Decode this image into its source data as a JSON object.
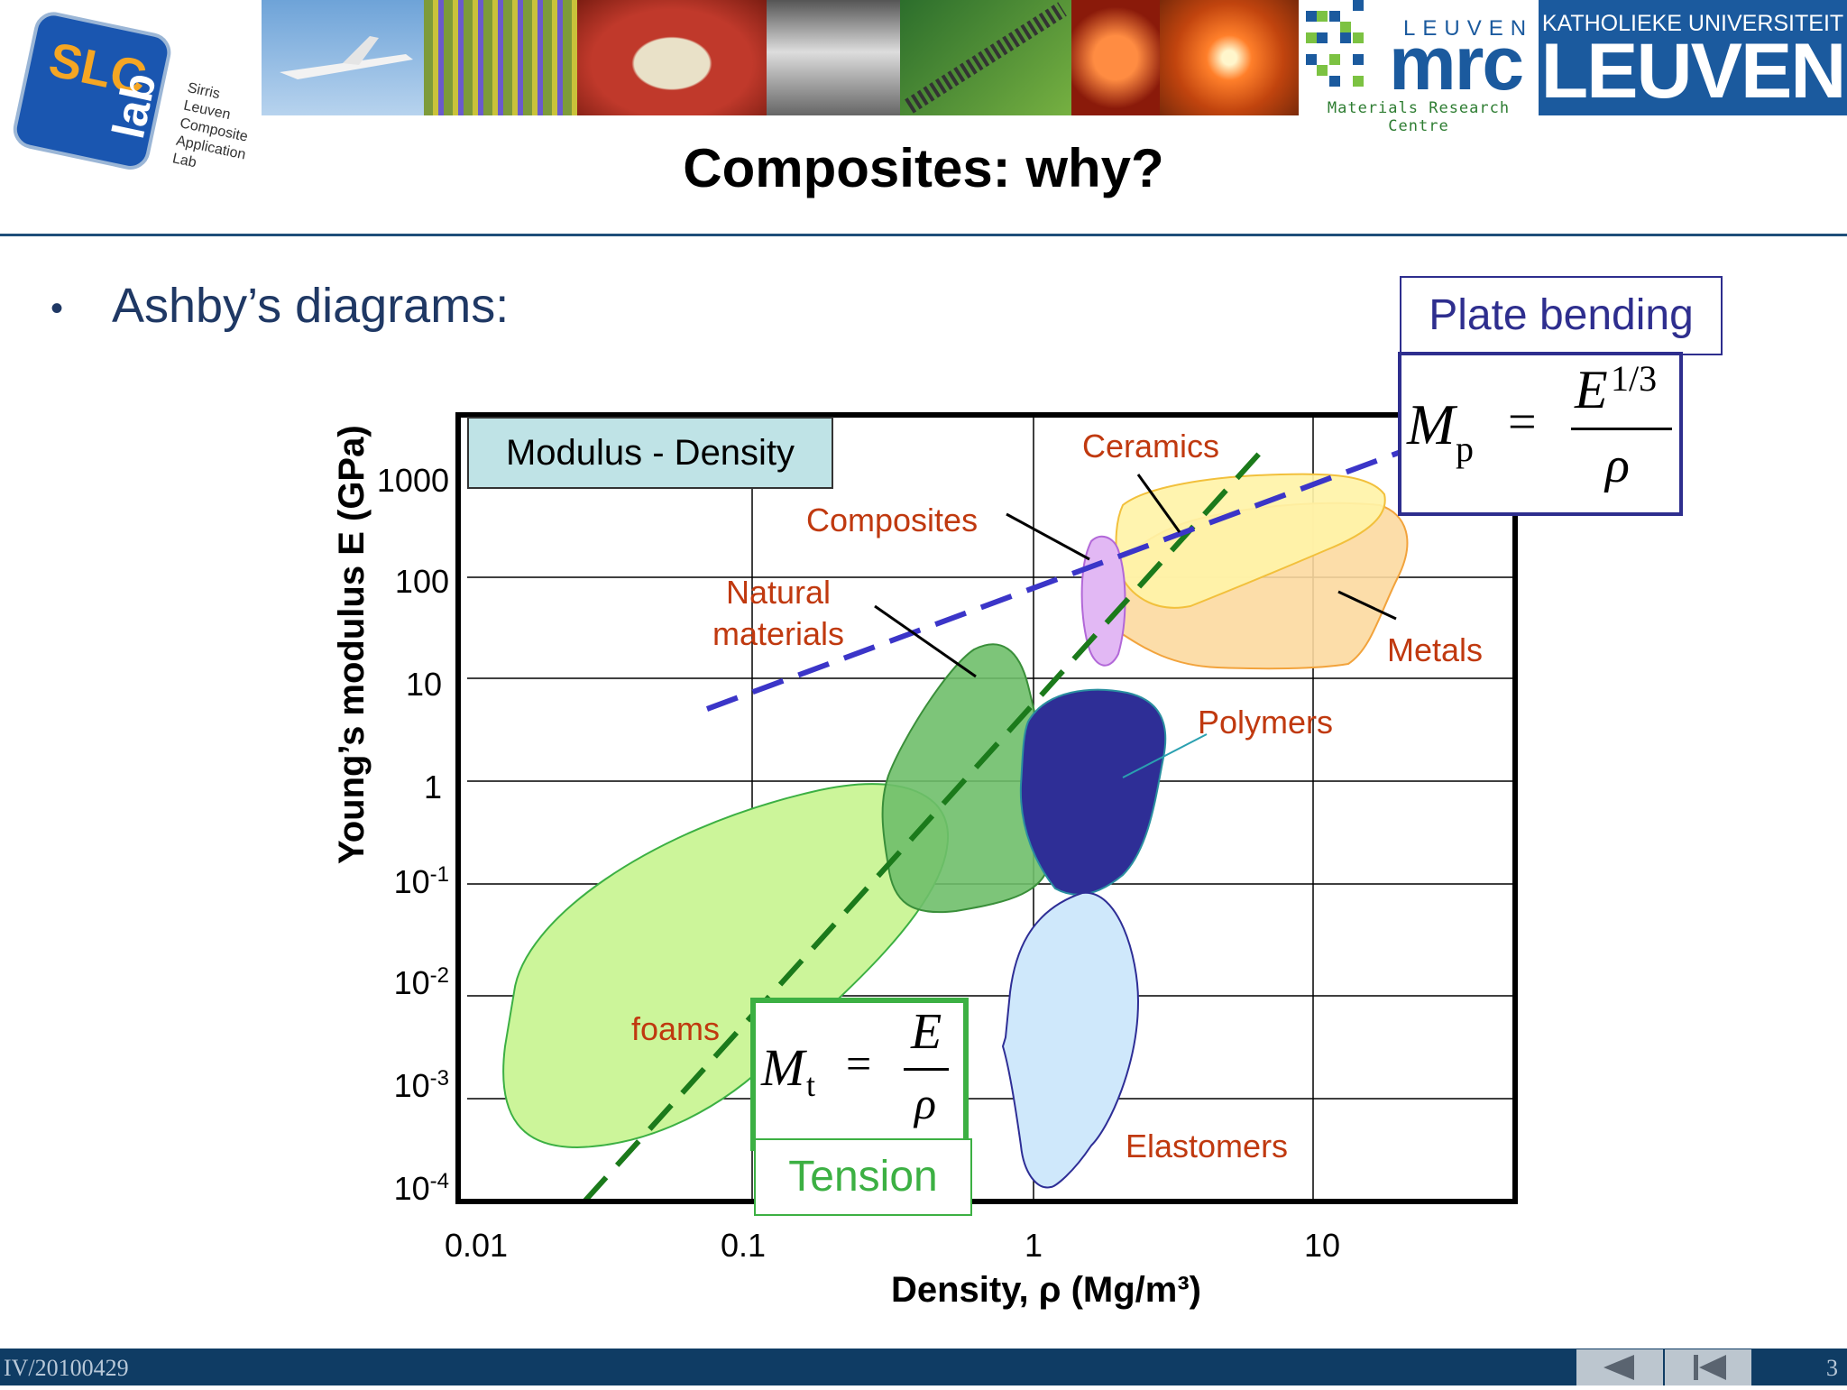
{
  "header": {
    "slc_logo": {
      "big": "SLC",
      "lab": "lab",
      "lines": [
        "Sirris",
        "Leuven",
        "Composite",
        "Application",
        "Lab"
      ]
    },
    "mrc_logo": {
      "top": "LEUVEN",
      "main": "mrc",
      "sub": "Materials Research Centre"
    },
    "kul_logo": {
      "top": "KATHOLIEKE UNIVERSITEIT",
      "main": "LEUVEN"
    },
    "title": "Composites: why?"
  },
  "bullet": {
    "marker": "•",
    "text": "Ashby’s diagrams:"
  },
  "formulas": {
    "plate": {
      "caption": "Plate bending",
      "lhs": "M",
      "sub": "p",
      "num": "E",
      "exp": "1/3",
      "den": "ρ",
      "eq": "="
    },
    "tension": {
      "caption": "Tension",
      "lhs": "M",
      "sub": "t",
      "num": "E",
      "den": "ρ",
      "eq": "="
    }
  },
  "chart_data": {
    "type": "bubble-regions (Ashby map)",
    "title": "Modulus - Density",
    "xlabel": "Density, ρ (Mg/m³)",
    "ylabel": "Young’s modulus E (GPa)",
    "x_scale": "log",
    "y_scale": "log",
    "xlim": [
      0.01,
      50
    ],
    "ylim": [
      0.0001,
      3000
    ],
    "x_ticks": [
      "0.01",
      "0.1",
      "1",
      "10"
    ],
    "y_ticks": [
      {
        "base": "1000",
        "exp": ""
      },
      {
        "base": "100",
        "exp": ""
      },
      {
        "base": "10",
        "exp": ""
      },
      {
        "base": "1",
        "exp": ""
      },
      {
        "base": "10",
        "exp": "-1"
      },
      {
        "base": "10",
        "exp": "-2"
      },
      {
        "base": "10",
        "exp": "-3"
      },
      {
        "base": "10",
        "exp": "-4"
      }
    ],
    "grid": true,
    "regions": [
      {
        "name": "Ceramics",
        "color": "#fff3a8"
      },
      {
        "name": "Metals",
        "color": "#fcd9a0"
      },
      {
        "name": "Composites",
        "color": "#e2b8f4"
      },
      {
        "name": "Natural materials",
        "color": "#6fbf6a"
      },
      {
        "name": "Polymers",
        "color": "#2e2e96"
      },
      {
        "name": "Elastomers",
        "color": "#cfe8fb"
      },
      {
        "name": "foams",
        "color": "#ccf59a"
      }
    ],
    "guide_lines": [
      {
        "name": "Tension",
        "slope": 1,
        "color": "#1b7a1b",
        "style": "dashed"
      },
      {
        "name": "Plate bending",
        "slope": 3,
        "color": "#3b35c8",
        "style": "dashed"
      }
    ]
  },
  "labels": {
    "natural_1": "Natural",
    "natural_2": "materials"
  },
  "footer": {
    "left": "IV/20100429",
    "page": "3"
  }
}
